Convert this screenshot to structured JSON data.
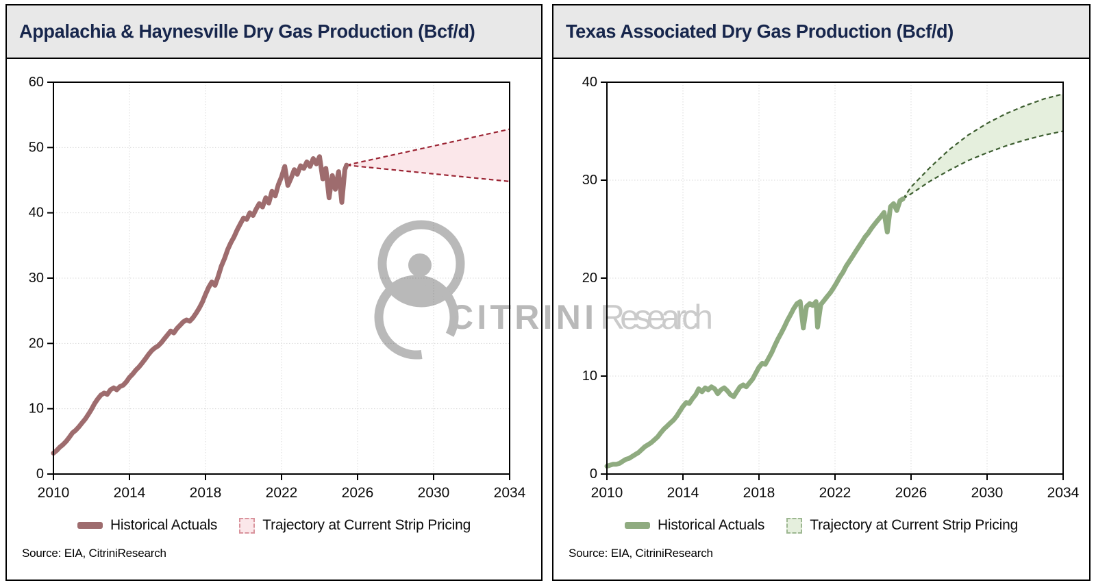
{
  "theme": {
    "titlebar_bg": "#E8E8E8",
    "title_color": "#17264C",
    "grid_color": "#DADADA",
    "axis_color": "#000000",
    "tick_label_color": "#0a0a0a",
    "watermark_gray": "#B9B9B9",
    "watermark_light_gray": "#CBCBCB"
  },
  "watermark": {
    "brand_bold": "CITRINI",
    "brand_light": "Research"
  },
  "chart_data": [
    {
      "type": "line",
      "title": "Appalachia & Haynesville Dry Gas Production (Bcf/d)",
      "source": "Source: EIA, CitriniResearch",
      "xlabel": "",
      "ylabel": "",
      "xlim": [
        2010,
        2034
      ],
      "ylim": [
        0,
        60
      ],
      "x_ticks": [
        2010,
        2014,
        2018,
        2022,
        2026,
        2030,
        2034
      ],
      "y_ticks": [
        0,
        10,
        20,
        30,
        40,
        50,
        60
      ],
      "grid": true,
      "legend_position": "bottom",
      "legend": [
        {
          "label": "Historical Actuals"
        },
        {
          "label": "Trajectory at Current Strip Pricing"
        }
      ],
      "colors": {
        "line": "#9E6C6E",
        "band_fill": "#FBE7EA",
        "band_edge": "#9B2433",
        "legend_band_edge": "#D9939C"
      },
      "series": [
        {
          "name": "Historical Actuals",
          "points": [
            [
              2010.0,
              3.2
            ],
            [
              2010.17,
              3.6
            ],
            [
              2010.33,
              4.1
            ],
            [
              2010.5,
              4.5
            ],
            [
              2010.67,
              5.0
            ],
            [
              2010.83,
              5.6
            ],
            [
              2011.0,
              6.3
            ],
            [
              2011.17,
              6.7
            ],
            [
              2011.33,
              7.2
            ],
            [
              2011.5,
              7.8
            ],
            [
              2011.67,
              8.4
            ],
            [
              2011.83,
              9.1
            ],
            [
              2012.0,
              9.9
            ],
            [
              2012.17,
              10.8
            ],
            [
              2012.33,
              11.5
            ],
            [
              2012.5,
              12.1
            ],
            [
              2012.67,
              12.4
            ],
            [
              2012.83,
              12.2
            ],
            [
              2013.0,
              12.9
            ],
            [
              2013.17,
              13.2
            ],
            [
              2013.33,
              12.9
            ],
            [
              2013.5,
              13.4
            ],
            [
              2013.67,
              13.6
            ],
            [
              2013.83,
              14.1
            ],
            [
              2014.0,
              14.8
            ],
            [
              2014.17,
              15.3
            ],
            [
              2014.33,
              15.9
            ],
            [
              2014.5,
              16.4
            ],
            [
              2014.67,
              17.0
            ],
            [
              2014.83,
              17.6
            ],
            [
              2015.0,
              18.3
            ],
            [
              2015.17,
              18.9
            ],
            [
              2015.33,
              19.3
            ],
            [
              2015.5,
              19.6
            ],
            [
              2015.67,
              20.1
            ],
            [
              2015.83,
              20.7
            ],
            [
              2016.0,
              21.3
            ],
            [
              2016.17,
              21.9
            ],
            [
              2016.33,
              21.6
            ],
            [
              2016.5,
              22.3
            ],
            [
              2016.67,
              22.8
            ],
            [
              2016.83,
              23.3
            ],
            [
              2017.0,
              23.6
            ],
            [
              2017.17,
              23.4
            ],
            [
              2017.33,
              23.9
            ],
            [
              2017.5,
              24.6
            ],
            [
              2017.67,
              25.4
            ],
            [
              2017.83,
              26.3
            ],
            [
              2018.0,
              27.5
            ],
            [
              2018.17,
              28.6
            ],
            [
              2018.33,
              29.4
            ],
            [
              2018.5,
              28.9
            ],
            [
              2018.67,
              30.3
            ],
            [
              2018.83,
              31.8
            ],
            [
              2019.0,
              33.0
            ],
            [
              2019.17,
              34.4
            ],
            [
              2019.33,
              35.4
            ],
            [
              2019.5,
              36.3
            ],
            [
              2019.67,
              37.4
            ],
            [
              2019.83,
              38.3
            ],
            [
              2020.0,
              39.2
            ],
            [
              2020.17,
              39.0
            ],
            [
              2020.33,
              40.0
            ],
            [
              2020.5,
              39.6
            ],
            [
              2020.67,
              40.6
            ],
            [
              2020.83,
              41.4
            ],
            [
              2021.0,
              40.9
            ],
            [
              2021.17,
              42.3
            ],
            [
              2021.33,
              41.5
            ],
            [
              2021.5,
              43.3
            ],
            [
              2021.67,
              42.6
            ],
            [
              2021.83,
              44.3
            ],
            [
              2022.0,
              45.5
            ],
            [
              2022.17,
              47.1
            ],
            [
              2022.33,
              44.2
            ],
            [
              2022.5,
              45.3
            ],
            [
              2022.67,
              46.6
            ],
            [
              2022.83,
              45.9
            ],
            [
              2023.0,
              47.2
            ],
            [
              2023.17,
              46.8
            ],
            [
              2023.33,
              47.8
            ],
            [
              2023.5,
              47.1
            ],
            [
              2023.67,
              48.3
            ],
            [
              2023.83,
              47.5
            ],
            [
              2024.0,
              48.6
            ],
            [
              2024.17,
              45.2
            ],
            [
              2024.33,
              46.8
            ],
            [
              2024.5,
              42.3
            ],
            [
              2024.67,
              45.7
            ],
            [
              2024.83,
              43.6
            ],
            [
              2025.0,
              46.3
            ],
            [
              2025.17,
              41.6
            ],
            [
              2025.33,
              46.6
            ],
            [
              2025.42,
              47.3
            ]
          ]
        }
      ],
      "band": {
        "name": "Trajectory at Current Strip Pricing",
        "start": [
          2025.42,
          47.3
        ],
        "top": [
          [
            2034,
            52.8
          ]
        ],
        "bottom": [
          [
            2034,
            44.8
          ]
        ]
      }
    },
    {
      "type": "line",
      "title": "Texas Associated Dry Gas Production (Bcf/d)",
      "source": "Source: EIA, CitriniResearch",
      "xlabel": "",
      "ylabel": "",
      "xlim": [
        2010,
        2034
      ],
      "ylim": [
        0,
        40
      ],
      "x_ticks": [
        2010,
        2014,
        2018,
        2022,
        2026,
        2030,
        2034
      ],
      "y_ticks": [
        0,
        10,
        20,
        30,
        40
      ],
      "grid": true,
      "legend_position": "bottom",
      "legend": [
        {
          "label": "Historical Actuals"
        },
        {
          "label": "Trajectory at Current Strip Pricing"
        }
      ],
      "colors": {
        "line": "#8FAB80",
        "band_fill": "#E5EFDD",
        "band_edge": "#3D5E30",
        "legend_band_edge": "#9DB791"
      },
      "series": [
        {
          "name": "Historical Actuals",
          "points": [
            [
              2010.0,
              0.8
            ],
            [
              2010.17,
              0.9
            ],
            [
              2010.33,
              1.0
            ],
            [
              2010.5,
              1.0
            ],
            [
              2010.67,
              1.1
            ],
            [
              2010.83,
              1.3
            ],
            [
              2011.0,
              1.5
            ],
            [
              2011.17,
              1.6
            ],
            [
              2011.33,
              1.8
            ],
            [
              2011.5,
              2.0
            ],
            [
              2011.67,
              2.2
            ],
            [
              2011.83,
              2.5
            ],
            [
              2012.0,
              2.8
            ],
            [
              2012.17,
              3.0
            ],
            [
              2012.33,
              3.2
            ],
            [
              2012.5,
              3.5
            ],
            [
              2012.67,
              3.8
            ],
            [
              2012.83,
              4.2
            ],
            [
              2013.0,
              4.6
            ],
            [
              2013.17,
              4.9
            ],
            [
              2013.33,
              5.2
            ],
            [
              2013.5,
              5.5
            ],
            [
              2013.67,
              5.9
            ],
            [
              2013.83,
              6.4
            ],
            [
              2014.0,
              6.9
            ],
            [
              2014.17,
              7.3
            ],
            [
              2014.33,
              7.2
            ],
            [
              2014.5,
              7.7
            ],
            [
              2014.67,
              8.1
            ],
            [
              2014.83,
              8.7
            ],
            [
              2015.0,
              8.4
            ],
            [
              2015.17,
              8.8
            ],
            [
              2015.33,
              8.6
            ],
            [
              2015.5,
              8.9
            ],
            [
              2015.67,
              8.7
            ],
            [
              2015.83,
              8.2
            ],
            [
              2016.0,
              8.6
            ],
            [
              2016.17,
              8.8
            ],
            [
              2016.33,
              8.5
            ],
            [
              2016.5,
              8.1
            ],
            [
              2016.67,
              7.9
            ],
            [
              2016.83,
              8.4
            ],
            [
              2017.0,
              8.9
            ],
            [
              2017.17,
              9.1
            ],
            [
              2017.33,
              8.9
            ],
            [
              2017.5,
              9.3
            ],
            [
              2017.67,
              9.7
            ],
            [
              2017.83,
              10.3
            ],
            [
              2018.0,
              10.9
            ],
            [
              2018.17,
              11.3
            ],
            [
              2018.33,
              11.2
            ],
            [
              2018.5,
              11.8
            ],
            [
              2018.67,
              12.4
            ],
            [
              2018.83,
              13.1
            ],
            [
              2019.0,
              13.8
            ],
            [
              2019.17,
              14.4
            ],
            [
              2019.33,
              15.0
            ],
            [
              2019.5,
              15.7
            ],
            [
              2019.67,
              16.3
            ],
            [
              2019.83,
              16.9
            ],
            [
              2020.0,
              17.4
            ],
            [
              2020.17,
              17.6
            ],
            [
              2020.33,
              14.9
            ],
            [
              2020.5,
              17.1
            ],
            [
              2020.67,
              17.4
            ],
            [
              2020.83,
              17.2
            ],
            [
              2021.0,
              17.6
            ],
            [
              2021.08,
              15.0
            ],
            [
              2021.25,
              17.3
            ],
            [
              2021.42,
              17.7
            ],
            [
              2021.58,
              18.1
            ],
            [
              2021.75,
              18.5
            ],
            [
              2021.92,
              19.0
            ],
            [
              2022.08,
              19.5
            ],
            [
              2022.25,
              20.1
            ],
            [
              2022.42,
              20.6
            ],
            [
              2022.58,
              21.2
            ],
            [
              2022.75,
              21.7
            ],
            [
              2022.92,
              22.2
            ],
            [
              2023.08,
              22.7
            ],
            [
              2023.25,
              23.2
            ],
            [
              2023.42,
              23.7
            ],
            [
              2023.58,
              24.2
            ],
            [
              2023.75,
              24.6
            ],
            [
              2023.92,
              25.1
            ],
            [
              2024.08,
              25.5
            ],
            [
              2024.25,
              25.9
            ],
            [
              2024.42,
              26.3
            ],
            [
              2024.58,
              26.7
            ],
            [
              2024.75,
              24.7
            ],
            [
              2024.92,
              27.3
            ],
            [
              2025.08,
              27.6
            ],
            [
              2025.25,
              26.9
            ],
            [
              2025.42,
              27.9
            ],
            [
              2025.58,
              28.1
            ]
          ]
        }
      ],
      "band": {
        "name": "Trajectory at Current Strip Pricing",
        "start": [
          2025.58,
          28.1
        ],
        "top": [
          [
            2026,
            29.3
          ],
          [
            2027,
            31.3
          ],
          [
            2028,
            33.1
          ],
          [
            2029,
            34.6
          ],
          [
            2030,
            35.8
          ],
          [
            2031,
            36.8
          ],
          [
            2032,
            37.6
          ],
          [
            2033,
            38.3
          ],
          [
            2034,
            38.8
          ]
        ],
        "bottom": [
          [
            2026,
            28.6
          ],
          [
            2027,
            29.9
          ],
          [
            2028,
            31.0
          ],
          [
            2029,
            32.0
          ],
          [
            2030,
            32.8
          ],
          [
            2031,
            33.5
          ],
          [
            2032,
            34.1
          ],
          [
            2033,
            34.6
          ],
          [
            2034,
            35.0
          ]
        ]
      }
    }
  ]
}
